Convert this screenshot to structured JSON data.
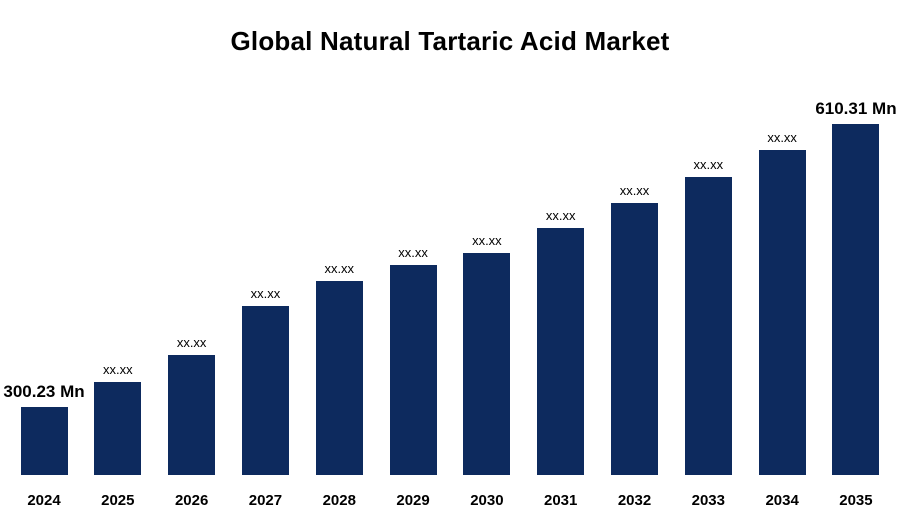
{
  "chart_data": {
    "type": "bar",
    "title": "Global Natural Tartaric Acid Market",
    "categories": [
      "2024",
      "2025",
      "2026",
      "2027",
      "2028",
      "2029",
      "2030",
      "2031",
      "2032",
      "2033",
      "2034",
      "2035"
    ],
    "values": [
      300.23,
      327.6,
      357.2,
      410.9,
      438.3,
      455.8,
      469.0,
      496.3,
      523.7,
      552.2,
      581.8,
      610.31
    ],
    "value_labels": [
      "300.23 Mn",
      "xx.xx",
      "xx.xx",
      "xx.xx",
      "xx.xx",
      "xx.xx",
      "xx.xx",
      "xx.xx",
      "xx.xx",
      "xx.xx",
      "xx.xx",
      "610.31 Mn"
    ],
    "unit": "Mn",
    "xlabel": "",
    "ylabel": "",
    "ylim": [
      226,
      650
    ],
    "grid": false,
    "legend": false,
    "axis_visible": false,
    "bar_color": "#0d2a5e",
    "label_color": "#000000",
    "title_color": "#000000"
  }
}
